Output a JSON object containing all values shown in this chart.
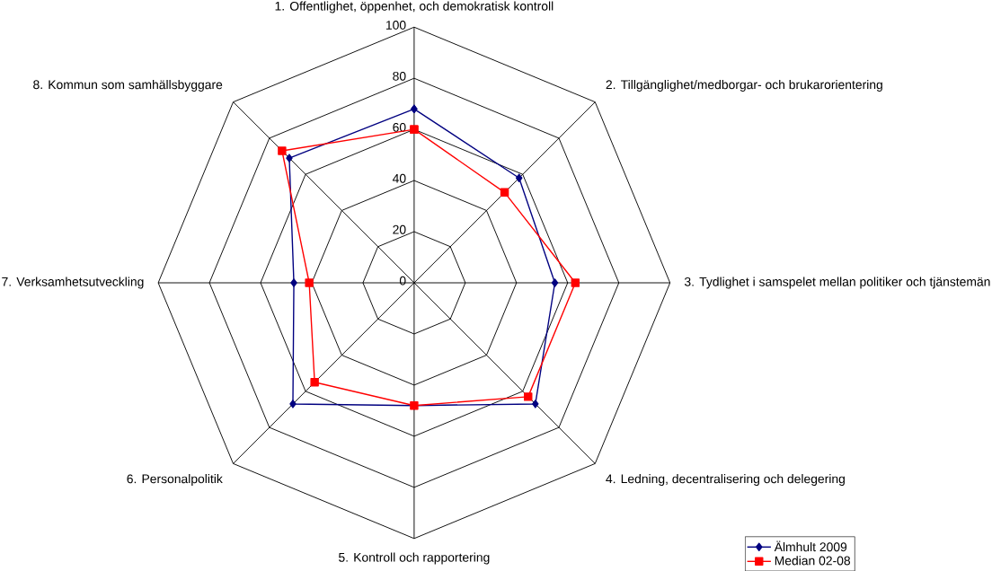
{
  "chart_data": {
    "type": "radar",
    "categories": [
      "1. Offentlighet, öppenhet, och demokratisk kontroll",
      "2. Tillgänglighet/medborgar- och brukarorientering",
      "3. Tydlighet i samspelet mellan politiker och tjänstemän",
      "4. Ledning, decentralisering och delegering",
      "5. Kontroll och rapportering",
      "6. Personalpolitik",
      "7. Verksamhetsutveckling",
      "8. Kommun som samhällsbyggare"
    ],
    "series": [
      {
        "name": "Älmhult 2009",
        "color": "#000080",
        "marker": "diamond",
        "values": [
          68,
          58,
          55,
          67,
          48,
          67,
          47,
          69
        ]
      },
      {
        "name": "Median 02-08",
        "color": "#ff0000",
        "marker": "square",
        "values": [
          60,
          50,
          63,
          63,
          48,
          55,
          41,
          73
        ]
      }
    ],
    "ylim": [
      0,
      100
    ],
    "yticks": [
      0,
      20,
      40,
      60,
      80,
      100
    ],
    "grid": true,
    "legend": "bottom right"
  }
}
